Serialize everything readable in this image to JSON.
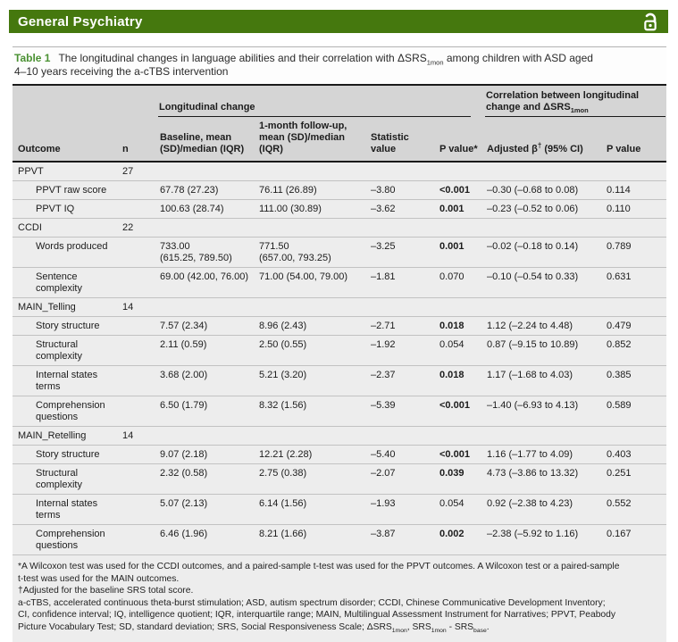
{
  "colors": {
    "masthead_green": "#45780e",
    "table_label_green": "#4a9132",
    "header_bg": "#d5d5d5",
    "body_bg": "#ededed"
  },
  "journal": {
    "title": "General Psychiatry",
    "icon": "open-access-lock-icon"
  },
  "caption": {
    "label": "Table 1",
    "text_before_sub": "The longitudinal changes in language abilities and their correlation with ΔSRS",
    "sub": "1mon",
    "text_after_sub": " among children with ASD aged\n4–10 years receiving the a-cTBS intervention"
  },
  "table": {
    "spanners": {
      "longitudinal": "Longitudinal change",
      "correlation_before_sub": "Correlation between longitudinal change and ΔSRS",
      "correlation_sub": "1mon"
    },
    "columns": {
      "outcome": "Outcome",
      "n": "n",
      "baseline": "Baseline, mean (SD)/median (IQR)",
      "followup": "1-month follow-up, mean (SD)/median (IQR)",
      "statistic": "Statistic value",
      "p1": "P value*",
      "beta_pre": "Adjusted β",
      "beta_sup": "†",
      "beta_post": " (95% CI)",
      "p2": "P value"
    },
    "rows": [
      {
        "label": "PPVT",
        "indent": false,
        "n": "27",
        "baseline": "",
        "followup": "",
        "statistic": "",
        "p1": "",
        "p1_bold": false,
        "beta": "",
        "p2": ""
      },
      {
        "label": "PPVT raw score",
        "indent": true,
        "n": "",
        "baseline": "67.78 (27.23)",
        "followup": "76.11 (26.89)",
        "statistic": "–3.80",
        "p1": "<0.001",
        "p1_bold": true,
        "beta": "–0.30 (–0.68 to 0.08)",
        "p2": "0.114"
      },
      {
        "label": "PPVT IQ",
        "indent": true,
        "n": "",
        "baseline": "100.63 (28.74)",
        "followup": "111.00 (30.89)",
        "statistic": "–3.62",
        "p1": "0.001",
        "p1_bold": true,
        "beta": "–0.23 (–0.52 to 0.06)",
        "p2": "0.110"
      },
      {
        "label": "CCDI",
        "indent": false,
        "n": "22",
        "baseline": "",
        "followup": "",
        "statistic": "",
        "p1": "",
        "p1_bold": false,
        "beta": "",
        "p2": ""
      },
      {
        "label": "Words produced",
        "indent": true,
        "n": "",
        "baseline": "733.00 (615.25, 789.50)",
        "followup": "771.50 (657.00, 793.25)",
        "statistic": "–3.25",
        "p1": "0.001",
        "p1_bold": true,
        "beta": "–0.02 (–0.18 to 0.14)",
        "p2": "0.789"
      },
      {
        "label": "Sentence complexity",
        "indent": true,
        "n": "",
        "baseline": "69.00 (42.00, 76.00)",
        "followup": "71.00 (54.00, 79.00)",
        "statistic": "–1.81",
        "p1": "0.070",
        "p1_bold": false,
        "beta": "–0.10 (–0.54 to 0.33)",
        "p2": "0.631"
      },
      {
        "label": "MAIN_Telling",
        "indent": false,
        "n": "14",
        "baseline": "",
        "followup": "",
        "statistic": "",
        "p1": "",
        "p1_bold": false,
        "beta": "",
        "p2": ""
      },
      {
        "label": "Story structure",
        "indent": true,
        "n": "",
        "baseline": "7.57 (2.34)",
        "followup": "8.96 (2.43)",
        "statistic": "–2.71",
        "p1": "0.018",
        "p1_bold": true,
        "beta": "1.12 (–2.24 to 4.48)",
        "p2": "0.479"
      },
      {
        "label": "Structural complexity",
        "indent": true,
        "n": "",
        "baseline": "2.11 (0.59)",
        "followup": "2.50 (0.55)",
        "statistic": "–1.92",
        "p1": "0.054",
        "p1_bold": false,
        "beta": "0.87 (–9.15 to 10.89)",
        "p2": "0.852"
      },
      {
        "label": "Internal states terms",
        "indent": true,
        "n": "",
        "baseline": "3.68 (2.00)",
        "followup": "5.21 (3.20)",
        "statistic": "–2.37",
        "p1": "0.018",
        "p1_bold": true,
        "beta": "1.17 (–1.68 to 4.03)",
        "p2": "0.385"
      },
      {
        "label": "Comprehension questions",
        "indent": true,
        "n": "",
        "baseline": "6.50 (1.79)",
        "followup": "8.32 (1.56)",
        "statistic": "–5.39",
        "p1": "<0.001",
        "p1_bold": true,
        "beta": "–1.40 (–6.93 to 4.13)",
        "p2": "0.589"
      },
      {
        "label": "MAIN_Retelling",
        "indent": false,
        "n": "14",
        "baseline": "",
        "followup": "",
        "statistic": "",
        "p1": "",
        "p1_bold": false,
        "beta": "",
        "p2": ""
      },
      {
        "label": "Story structure",
        "indent": true,
        "n": "",
        "baseline": "9.07 (2.18)",
        "followup": "12.21 (2.28)",
        "statistic": "–5.40",
        "p1": "<0.001",
        "p1_bold": true,
        "beta": "1.16 (–1.77 to 4.09)",
        "p2": "0.403"
      },
      {
        "label": "Structural complexity",
        "indent": true,
        "n": "",
        "baseline": "2.32 (0.58)",
        "followup": "2.75 (0.38)",
        "statistic": "–2.07",
        "p1": "0.039",
        "p1_bold": true,
        "beta": "4.73 (–3.86 to 13.32)",
        "p2": "0.251"
      },
      {
        "label": "Internal states terms",
        "indent": true,
        "n": "",
        "baseline": "5.07 (2.13)",
        "followup": "6.14 (1.56)",
        "statistic": "–1.93",
        "p1": "0.054",
        "p1_bold": false,
        "beta": "0.92 (–2.38 to 4.23)",
        "p2": "0.552"
      },
      {
        "label": "Comprehension questions",
        "indent": true,
        "n": "",
        "baseline": "6.46 (1.96)",
        "followup": "8.21 (1.66)",
        "statistic": "–3.87",
        "p1": "0.002",
        "p1_bold": true,
        "beta": "–2.38 (–5.92 to 1.16)",
        "p2": "0.167"
      }
    ]
  },
  "footnotes": {
    "f1": "*A Wilcoxon test was used for the CCDI outcomes, and a paired-sample t-test was used for the PPVT outcomes. A Wilcoxon test or a paired-sample\nt-test was used for the MAIN outcomes.",
    "f2": "†Adjusted for the baseline SRS total score.",
    "f3": {
      "s0": "a-cTBS, accelerated continuous theta-burst stimulation; ASD, autism spectrum disorder; CCDI, Chinese Communicative Development Inventory;\nCI, confidence interval; IQ, intelligence quotient; IQR, interquartile range; MAIN, Multilingual Assessment Instrument for Narratives; PPVT, Peabody\nPicture Vocabulary Test; SD, standard deviation; SRS, Social Responsiveness Scale; ΔSRS",
      "sub1": "1mon",
      "s1": ", SRS",
      "sub2": "1mon",
      "s2": " - SRS",
      "sub3": "base",
      "s3": "."
    }
  }
}
